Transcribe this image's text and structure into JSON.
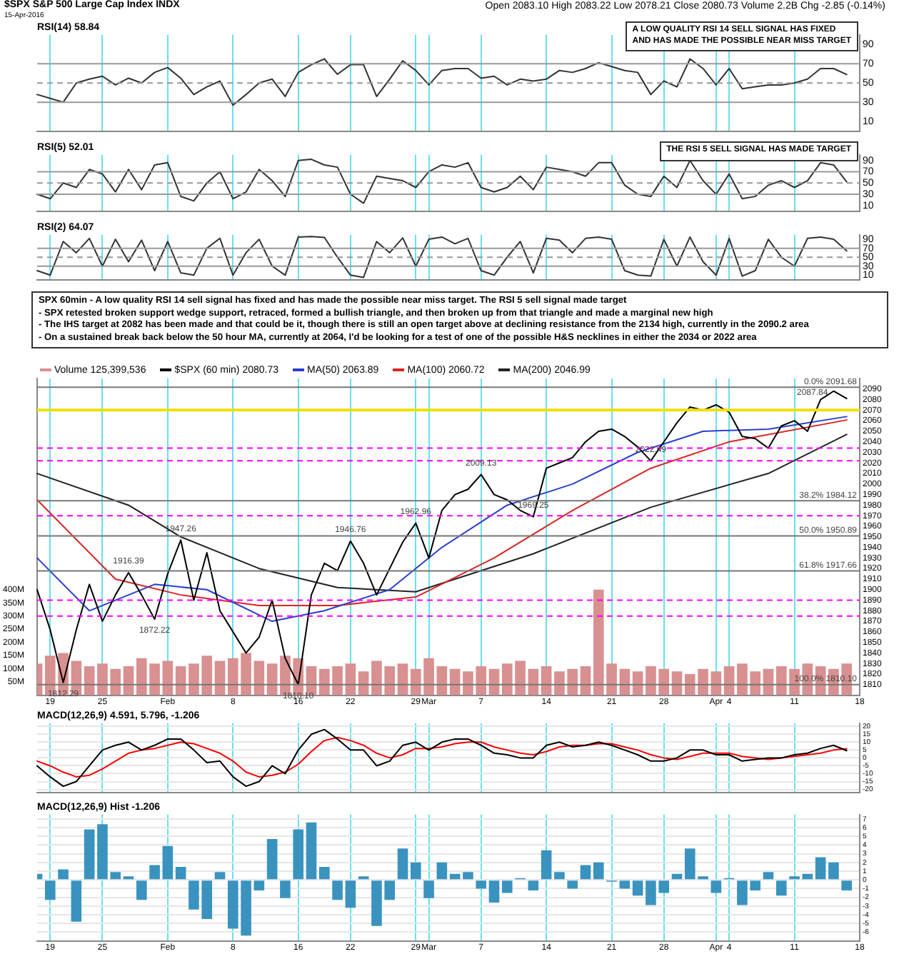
{
  "chart_data": [
    {
      "type": "line",
      "title": "RSI(14) 58.84",
      "annotations": [
        "$SPX S&P 500 Large Cap Index INDX",
        "15-Apr-2016",
        "Open 2083.10 High 2083.22 Low 2078.21 Close 2080.73 Volume 2.2B Chg -2.85 (-0.14%)",
        "A LOW QUALITY RSI 14 SELL SIGNAL HAS FIXED\nAND HAS MADE THE POSSIBLE NEAR MISS TARGET"
      ],
      "categories": [
        null,
        null,
        null,
        null,
        null,
        null,
        null,
        null,
        null,
        null,
        null,
        null,
        null,
        null,
        null,
        null,
        null,
        null,
        null,
        null,
        null,
        null,
        null,
        null,
        null,
        null,
        null,
        null,
        null,
        null,
        null,
        null,
        null,
        null,
        null,
        null,
        null,
        null,
        null,
        null,
        null,
        null,
        null,
        null,
        null,
        null,
        null,
        null,
        null,
        null,
        null,
        null,
        null,
        null,
        null,
        null,
        null,
        null,
        null,
        null,
        null,
        null,
        null,
        null
      ],
      "ylim": [
        0,
        100
      ],
      "yticks": [
        10,
        30,
        50,
        70,
        90
      ],
      "tick_labels": "y",
      "grid": "x",
      "ref_lines": [
        {
          "axis": "y",
          "value": 70,
          "color": "#999999"
        },
        {
          "axis": "y",
          "value": 30,
          "color": "#999999"
        },
        {
          "axis": "y",
          "value": 50,
          "color": "#999999",
          "line_style": "dashed"
        }
      ],
      "series": [
        {
          "color": "#333333",
          "values": [
            38,
            34,
            30,
            50,
            54,
            57,
            48,
            55,
            50,
            61,
            66,
            55,
            38,
            46,
            52,
            27,
            38,
            50,
            54,
            36,
            61,
            69,
            75,
            59,
            69,
            69,
            36,
            54,
            73,
            63,
            48,
            63,
            65,
            65,
            55,
            57,
            48,
            54,
            52,
            54,
            63,
            61,
            65,
            71,
            67,
            63,
            61,
            38,
            52,
            46,
            75,
            65,
            48,
            65,
            44,
            46,
            48,
            48,
            50,
            54,
            65,
            65,
            58.8,
            null
          ]
        }
      ]
    },
    {
      "type": "line",
      "title": "RSI(5) 52.01",
      "annotations": [
        "THE RSI 5 SELL SIGNAL HAS MADE TARGET"
      ],
      "categories": [
        null,
        null,
        null,
        null,
        null,
        null,
        null,
        null,
        null,
        null,
        null,
        null,
        null,
        null,
        null,
        null,
        null,
        null,
        null,
        null,
        null,
        null,
        null,
        null,
        null,
        null,
        null,
        null,
        null,
        null,
        null,
        null,
        null,
        null,
        null,
        null,
        null,
        null,
        null,
        null,
        null,
        null,
        null,
        null,
        null,
        null,
        null,
        null,
        null,
        null,
        null,
        null,
        null,
        null,
        null,
        null,
        null,
        null,
        null,
        null,
        null,
        null,
        null,
        null
      ],
      "ylim": [
        0,
        100
      ],
      "yticks": [
        10,
        30,
        50,
        70,
        90
      ],
      "tick_labels": "y",
      "grid": "x",
      "ref_lines": [
        {
          "axis": "y",
          "value": 70,
          "color": "#999999"
        },
        {
          "axis": "y",
          "value": 30,
          "color": "#999999"
        },
        {
          "axis": "y",
          "value": 50,
          "color": "#999999",
          "line_style": "dashed"
        }
      ],
      "series": [
        {
          "color": "#333333",
          "values": [
            30,
            22,
            50,
            42,
            74,
            66,
            34,
            74,
            38,
            82,
            86,
            26,
            18,
            50,
            70,
            22,
            34,
            74,
            54,
            26,
            90,
            92,
            82,
            78,
            30,
            14,
            62,
            58,
            54,
            42,
            70,
            82,
            78,
            86,
            42,
            34,
            42,
            62,
            38,
            78,
            74,
            70,
            62,
            86,
            86,
            46,
            30,
            26,
            62,
            42,
            90,
            54,
            30,
            66,
            22,
            26,
            46,
            54,
            42,
            54,
            86,
            82,
            52.0,
            null
          ]
        }
      ]
    },
    {
      "type": "line",
      "title": "RSI(2) 64.07",
      "annotations": [
        "SPX 60min - A low quality RSI 14 sell signal has fixed and has made the possible near miss target. The RSI 5 sell signal made target",
        "- SPX retested broken support wedge support, retraced, formed a bullish triangle, and then broken up from that triangle and made a marginal new high",
        "- The IHS target at 2082 has been made and that could be it, though there is still an open target above at declining resistance from the 2134 high, currently in the 2090.2 area",
        "- On a sustained break back below the 50 hour MA, currently at 2064, I'd be looking for a test of one of the possible H&S necklines in either the 2034 or 2022 area"
      ],
      "categories": [
        null,
        null,
        null,
        null,
        null,
        null,
        null,
        null,
        null,
        null,
        null,
        null,
        null,
        null,
        null,
        null,
        null,
        null,
        null,
        null,
        null,
        null,
        null,
        null,
        null,
        null,
        null,
        null,
        null,
        null,
        null,
        null,
        null,
        null,
        null,
        null,
        null,
        null,
        null,
        null,
        null,
        null,
        null,
        null,
        null,
        null,
        null,
        null,
        null,
        null,
        null,
        null,
        null,
        null,
        null,
        null,
        null,
        null,
        null,
        null,
        null,
        null,
        null,
        null
      ],
      "ylim": [
        0,
        100
      ],
      "yticks": [
        10,
        30,
        50,
        70,
        90
      ],
      "tick_labels": "y",
      "grid": "x",
      "ref_lines": [
        {
          "axis": "y",
          "value": 70,
          "color": "#999999"
        },
        {
          "axis": "y",
          "value": 30,
          "color": "#999999"
        },
        {
          "axis": "y",
          "value": 50,
          "color": "#999999",
          "line_style": "dashed"
        }
      ],
      "series": [
        {
          "color": "#333333",
          "values": [
            20,
            10,
            85,
            60,
            92,
            30,
            90,
            40,
            88,
            20,
            85,
            15,
            10,
            70,
            92,
            10,
            60,
            90,
            30,
            10,
            95,
            96,
            94,
            50,
            10,
            5,
            85,
            60,
            93,
            30,
            90,
            95,
            80,
            92,
            20,
            10,
            50,
            85,
            15,
            92,
            88,
            60,
            92,
            95,
            90,
            20,
            10,
            8,
            90,
            30,
            95,
            40,
            10,
            92,
            8,
            20,
            90,
            50,
            30,
            92,
            95,
            90,
            64.1,
            null
          ]
        }
      ]
    },
    {
      "type": "line",
      "legend": "top left",
      "categories": [
        null,
        "19",
        null,
        null,
        null,
        "25",
        null,
        null,
        null,
        null,
        "Feb",
        null,
        null,
        null,
        null,
        "8",
        null,
        null,
        null,
        null,
        "16",
        null,
        null,
        null,
        "22",
        null,
        null,
        null,
        null,
        "29",
        "Mar",
        null,
        null,
        null,
        "7",
        null,
        null,
        null,
        null,
        "14",
        null,
        null,
        null,
        null,
        "21",
        null,
        null,
        null,
        "28",
        null,
        null,
        null,
        "Apr",
        "4",
        null,
        null,
        null,
        null,
        "11",
        null,
        null,
        null,
        null,
        "18"
      ],
      "ylim": [
        1800,
        2100
      ],
      "yticks": [
        1810,
        1820,
        1830,
        1840,
        1850,
        1860,
        1870,
        1880,
        1890,
        1900,
        1910,
        1920,
        1930,
        1940,
        1950,
        1960,
        1970,
        1980,
        1990,
        2000,
        2010,
        2020,
        2030,
        2040,
        2050,
        2060,
        2070,
        2080,
        2090
      ],
      "y2lim": [
        0,
        1200
      ],
      "y2ticks": [
        {
          "value": 50,
          "label": "50M"
        },
        {
          "value": 100,
          "label": "100M"
        },
        {
          "value": 150,
          "label": "150M"
        },
        {
          "value": 200,
          "label": "200M"
        },
        {
          "value": 250,
          "label": "250M"
        },
        {
          "value": 300,
          "label": "300M"
        },
        {
          "value": 350,
          "label": "350M"
        },
        {
          "value": 400,
          "label": "400M"
        }
      ],
      "grid": "x",
      "ref_lines": [
        {
          "axis": "y",
          "value": 2091.68,
          "label": "0.0% 2091.68",
          "color": "#777777"
        },
        {
          "axis": "y",
          "value": 1984.12,
          "label": "38.2% 1984.12",
          "color": "#777777"
        },
        {
          "axis": "y",
          "value": 1950.89,
          "label": "50.0% 1950.89",
          "color": "#777777"
        },
        {
          "axis": "y",
          "value": 1917.66,
          "label": "61.8% 1917.66",
          "color": "#777777"
        },
        {
          "axis": "y",
          "value": 1810.1,
          "label": "100.0% 1810.10",
          "color": "#777777"
        },
        {
          "axis": "y",
          "value": 2070,
          "color": "#f0e000"
        },
        {
          "axis": "y",
          "value": 2034,
          "color": "#ff00ff",
          "line_style": "dashed"
        },
        {
          "axis": "y",
          "value": 2022,
          "color": "#ff00ff",
          "line_style": "dashed"
        },
        {
          "axis": "y",
          "value": 1970,
          "color": "#ff00ff",
          "line_style": "dashed"
        },
        {
          "axis": "y",
          "value": 1890,
          "color": "#ff00ff",
          "line_style": "dashed"
        },
        {
          "axis": "y",
          "value": 1875,
          "color": "#ff00ff",
          "line_style": "dashed"
        }
      ],
      "annotations": [
        {
          "text": "1812.29",
          "y": 1812
        },
        {
          "text": "1916.39",
          "y": 1916
        },
        {
          "text": "1947.26",
          "y": 1947
        },
        {
          "text": "1872.22",
          "y": 1872
        },
        {
          "text": "1810.10",
          "y": 1810
        },
        {
          "text": "1946.76",
          "y": 1946
        },
        {
          "text": "1962.96",
          "y": 1963
        },
        {
          "text": "2009.13",
          "y": 2009
        },
        {
          "text": "1969.25",
          "y": 1969
        },
        {
          "text": "2022.49",
          "y": 2022
        },
        {
          "text": "2087.84",
          "y": 2088
        }
      ],
      "series": [
        {
          "type": "bar",
          "axis": "y2",
          "name": "Volume 125,399,536",
          "color": "#d89090",
          "values": [
            120,
            150,
            160,
            130,
            110,
            120,
            100,
            110,
            140,
            120,
            130,
            110,
            120,
            150,
            130,
            140,
            160,
            130,
            120,
            150,
            140,
            110,
            100,
            110,
            120,
            90,
            130,
            110,
            120,
            100,
            140,
            110,
            100,
            90,
            110,
            100,
            120,
            130,
            100,
            110,
            90,
            100,
            110,
            400,
            120,
            100,
            90,
            110,
            100,
            90,
            80,
            100,
            90,
            110,
            120,
            90,
            100,
            110,
            100,
            120,
            110,
            100,
            120,
            null
          ]
        },
        {
          "name": "$SPX (60 min) 2080.73",
          "color": "#000000",
          "values": [
            1900,
            1862,
            1812,
            1862,
            1905,
            1870,
            1895,
            1916,
            1895,
            1872,
            1915,
            1947,
            1890,
            1935,
            1880,
            1860,
            1840,
            1855,
            1890,
            1835,
            1810,
            1895,
            1925,
            1918,
            1946,
            1925,
            1895,
            1920,
            1945,
            1963,
            1930,
            1975,
            1990,
            1995,
            2009,
            1990,
            1985,
            1975,
            1969,
            2015,
            2020,
            2025,
            2040,
            2050,
            2052,
            2045,
            2035,
            2022,
            2040,
            2058,
            2073,
            2070,
            2075,
            2068,
            2045,
            2043,
            2034,
            2055,
            2060,
            2050,
            2080,
            2088,
            2081,
            null
          ]
        },
        {
          "name": "MA(50) 2063.89",
          "color": "#2a3fd0",
          "values": [
            1930,
            null,
            null,
            null,
            1880,
            null,
            null,
            null,
            null,
            1905,
            null,
            null,
            null,
            1900,
            null,
            null,
            null,
            null,
            1870,
            null,
            null,
            null,
            1880,
            null,
            null,
            null,
            null,
            1900,
            null,
            null,
            null,
            1940,
            null,
            null,
            null,
            null,
            1980,
            null,
            null,
            null,
            null,
            2000,
            null,
            null,
            null,
            null,
            2030,
            null,
            null,
            null,
            null,
            2050,
            null,
            null,
            null,
            null,
            2052,
            null,
            null,
            null,
            null,
            null,
            2063.9,
            null
          ]
        },
        {
          "name": "MA(100) 2060.72",
          "color": "#dd2222",
          "values": [
            1985,
            null,
            null,
            null,
            null,
            null,
            1910,
            null,
            null,
            null,
            null,
            1895,
            null,
            null,
            null,
            null,
            null,
            1885,
            null,
            null,
            null,
            null,
            null,
            1885,
            null,
            null,
            null,
            null,
            null,
            1893,
            null,
            null,
            null,
            null,
            null,
            1930,
            null,
            null,
            null,
            null,
            null,
            1975,
            null,
            null,
            null,
            null,
            null,
            2015,
            null,
            null,
            null,
            null,
            null,
            2040,
            null,
            null,
            null,
            null,
            null,
            null,
            null,
            null,
            2060.7,
            null
          ]
        },
        {
          "name": "MA(200) 2046.99",
          "color": "#222222",
          "values": [
            2010,
            null,
            null,
            null,
            null,
            null,
            null,
            1980,
            null,
            null,
            null,
            1950,
            null,
            null,
            null,
            null,
            null,
            1920,
            null,
            null,
            null,
            null,
            null,
            1902,
            null,
            null,
            null,
            null,
            null,
            1898,
            null,
            null,
            null,
            null,
            null,
            null,
            null,
            null,
            1934,
            null,
            null,
            null,
            null,
            null,
            null,
            null,
            null,
            1978,
            null,
            null,
            null,
            null,
            null,
            null,
            null,
            null,
            2010,
            null,
            null,
            null,
            null,
            null,
            2047,
            null
          ]
        }
      ]
    },
    {
      "type": "line",
      "title": "MACD(12,26,9) 4.591, 5.796, -1.206",
      "tick_labels": "y",
      "grid": true,
      "categories": [
        null,
        null,
        null,
        null,
        null,
        null,
        null,
        null,
        null,
        null,
        null,
        null,
        null,
        null,
        null,
        null,
        null,
        null,
        null,
        null,
        null,
        null,
        null,
        null,
        null,
        null,
        null,
        null,
        null,
        null,
        null,
        null,
        null,
        null,
        null,
        null,
        null,
        null,
        null,
        null,
        null,
        null,
        null,
        null,
        null,
        null,
        null,
        null,
        null,
        null,
        null,
        null,
        null,
        null,
        null,
        null,
        null,
        null,
        null,
        null,
        null,
        null,
        null,
        null
      ],
      "ylim": [
        -22,
        22
      ],
      "yticks": [
        -20,
        -15,
        -10,
        -5,
        0,
        5,
        10,
        15,
        20
      ],
      "series": [
        {
          "color": "#000000",
          "values": [
            -5,
            -12,
            -18,
            -15,
            -5,
            5,
            8,
            10,
            5,
            8,
            12,
            12,
            5,
            -3,
            -2,
            -12,
            -18,
            -15,
            -5,
            -10,
            5,
            15,
            18,
            12,
            5,
            5,
            -5,
            -2,
            8,
            10,
            5,
            10,
            12,
            12,
            8,
            3,
            2,
            0,
            0,
            8,
            10,
            7,
            8,
            10,
            8,
            5,
            2,
            -2,
            -2,
            0,
            5,
            5,
            2,
            2,
            -2,
            -1,
            0,
            0,
            2,
            3,
            6,
            8,
            4.6,
            null
          ]
        },
        {
          "color": "#ff0000",
          "values": [
            -2,
            -5,
            -9,
            -12,
            -11,
            -7,
            -2,
            3,
            5,
            6,
            8,
            10,
            9,
            6,
            3,
            -2,
            -9,
            -12,
            -11,
            -9,
            -4,
            4,
            11,
            13,
            11,
            8,
            3,
            0,
            2,
            6,
            6,
            7,
            9,
            10,
            10,
            7,
            5,
            3,
            2,
            4,
            7,
            8,
            8,
            9,
            9,
            7,
            5,
            2,
            0,
            -1,
            1,
            3,
            3,
            3,
            1,
            0,
            -1,
            0,
            1,
            2,
            3,
            5,
            5.8,
            null
          ]
        }
      ]
    },
    {
      "type": "bar",
      "title": "MACD(12,26,9) Hist -1.206",
      "grid": true,
      "categories": [
        null,
        "19",
        null,
        null,
        null,
        "25",
        null,
        null,
        null,
        null,
        "Feb",
        null,
        null,
        null,
        null,
        "8",
        null,
        null,
        null,
        null,
        "16",
        null,
        null,
        null,
        "22",
        null,
        null,
        null,
        null,
        "29",
        "Mar",
        null,
        null,
        null,
        "7",
        null,
        null,
        null,
        null,
        "14",
        null,
        null,
        null,
        null,
        "21",
        null,
        null,
        null,
        "28",
        null,
        null,
        null,
        "Apr",
        "4",
        null,
        null,
        null,
        null,
        "11",
        null,
        null,
        null,
        null,
        "18"
      ],
      "ylim": [
        -7,
        7.5
      ],
      "yticks": [
        -6,
        -5,
        -4,
        -3,
        -2,
        -1,
        0,
        1,
        2,
        3,
        4,
        5,
        6,
        7
      ],
      "series": [
        {
          "color": "#3a93bf",
          "values": [
            0.7,
            -2.3,
            1.2,
            -4.8,
            5.8,
            6.4,
            0.9,
            0.4,
            -2.3,
            1.7,
            3.9,
            1.5,
            -3.4,
            -4.5,
            0.9,
            -5.6,
            -6.4,
            -1.2,
            4.7,
            -2.1,
            5.8,
            6.6,
            1.5,
            -2.3,
            -3.2,
            0.4,
            -5.3,
            -2.3,
            3.6,
            2.0,
            -2.1,
            2.0,
            0.7,
            0.9,
            -1.0,
            -2.6,
            -1.5,
            0.2,
            -1.2,
            3.4,
            0.9,
            -1.0,
            1.7,
            2.0,
            -0.2,
            -1.0,
            -1.8,
            -2.9,
            -1.5,
            0.7,
            3.6,
            0.4,
            -1.5,
            0.2,
            -2.9,
            -1.2,
            0.9,
            -1.8,
            0.4,
            0.7,
            2.6,
            2.0,
            -1.2,
            null
          ]
        }
      ]
    }
  ]
}
